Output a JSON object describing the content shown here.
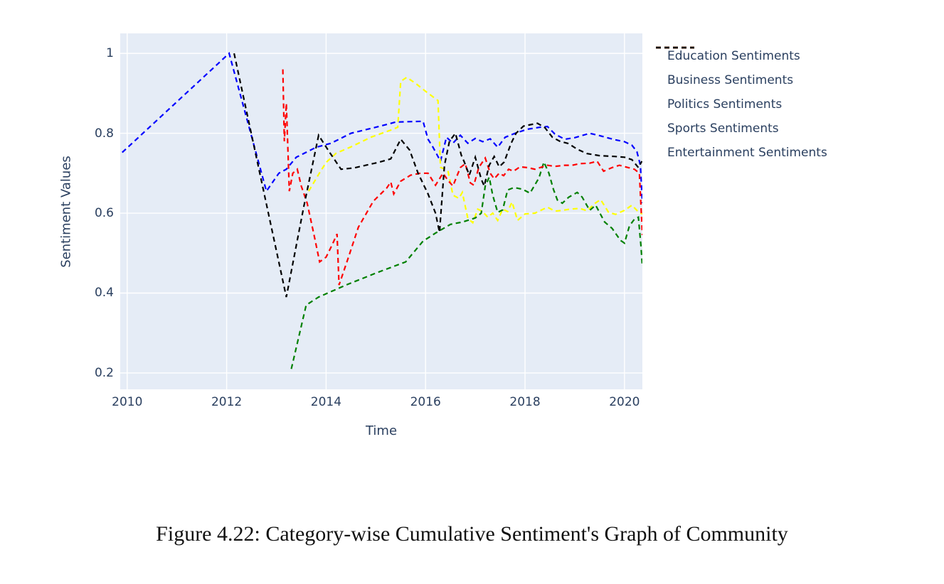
{
  "figure": {
    "caption": "Figure 4.22: Category-wise Cumulative Sentiment's Graph of Community"
  },
  "chart_data": {
    "type": "line",
    "title": "",
    "xlabel": "Time",
    "ylabel": "Sentiment Values",
    "xlim": [
      2009.86,
      2020.36
    ],
    "ylim": [
      0.159,
      1.05
    ],
    "grid": true,
    "legend_position": "right",
    "line_style": "dashed",
    "colors": {
      "plot_background": "#E5ECF6",
      "gridline": "#FFFFFF",
      "axis_text": "#2A3F5F",
      "caption_text": "#111111"
    },
    "x_tick_values": [
      2010,
      2012,
      2014,
      2016,
      2018,
      2020
    ],
    "x_tick_labels": [
      "2010",
      "2012",
      "2014",
      "2016",
      "2018",
      "2020"
    ],
    "y_tick_values": [
      0.2,
      0.4,
      0.6,
      0.8,
      1.0
    ],
    "y_tick_labels": [
      "0.2",
      "0.4",
      "0.6",
      "0.8",
      "1"
    ],
    "series": [
      {
        "name": "Education Sentiments",
        "color": "#0000FF",
        "dash": "dash",
        "points": [
          [
            2009.9,
            0.752
          ],
          [
            2012.05,
            1.0
          ],
          [
            2012.8,
            0.655
          ],
          [
            2013.05,
            0.7
          ],
          [
            2013.2,
            0.71
          ],
          [
            2013.4,
            0.74
          ],
          [
            2013.8,
            0.765
          ],
          [
            2014.1,
            0.775
          ],
          [
            2014.5,
            0.8
          ],
          [
            2015.0,
            0.815
          ],
          [
            2015.4,
            0.828
          ],
          [
            2015.95,
            0.83
          ],
          [
            2016.05,
            0.785
          ],
          [
            2016.15,
            0.765
          ],
          [
            2016.3,
            0.73
          ],
          [
            2016.42,
            0.79
          ],
          [
            2016.55,
            0.775
          ],
          [
            2016.7,
            0.795
          ],
          [
            2016.85,
            0.775
          ],
          [
            2017.0,
            0.787
          ],
          [
            2017.15,
            0.779
          ],
          [
            2017.3,
            0.786
          ],
          [
            2017.45,
            0.765
          ],
          [
            2017.6,
            0.79
          ],
          [
            2017.8,
            0.8
          ],
          [
            2018.05,
            0.81
          ],
          [
            2018.3,
            0.815
          ],
          [
            2018.45,
            0.817
          ],
          [
            2018.6,
            0.798
          ],
          [
            2018.8,
            0.785
          ],
          [
            2019.0,
            0.789
          ],
          [
            2019.3,
            0.8
          ],
          [
            2019.5,
            0.794
          ],
          [
            2019.8,
            0.784
          ],
          [
            2020.0,
            0.779
          ],
          [
            2020.15,
            0.77
          ],
          [
            2020.25,
            0.754
          ],
          [
            2020.32,
            0.72
          ],
          [
            2020.36,
            0.625
          ]
        ]
      },
      {
        "name": "Business Sentiments",
        "color": "#FFFF00",
        "dash": "dash",
        "points": [
          [
            2013.65,
            0.655
          ],
          [
            2013.85,
            0.697
          ],
          [
            2014.0,
            0.727
          ],
          [
            2014.2,
            0.75
          ],
          [
            2014.5,
            0.766
          ],
          [
            2014.9,
            0.79
          ],
          [
            2015.3,
            0.808
          ],
          [
            2015.44,
            0.815
          ],
          [
            2015.5,
            0.93
          ],
          [
            2015.62,
            0.94
          ],
          [
            2015.8,
            0.925
          ],
          [
            2016.0,
            0.905
          ],
          [
            2016.25,
            0.882
          ],
          [
            2016.3,
            0.715
          ],
          [
            2016.45,
            0.706
          ],
          [
            2016.55,
            0.645
          ],
          [
            2016.67,
            0.637
          ],
          [
            2016.74,
            0.652
          ],
          [
            2016.85,
            0.587
          ],
          [
            2016.95,
            0.576
          ],
          [
            2017.05,
            0.61
          ],
          [
            2017.15,
            0.604
          ],
          [
            2017.25,
            0.59
          ],
          [
            2017.35,
            0.6
          ],
          [
            2017.45,
            0.582
          ],
          [
            2017.55,
            0.61
          ],
          [
            2017.65,
            0.604
          ],
          [
            2017.74,
            0.628
          ],
          [
            2017.85,
            0.582
          ],
          [
            2018.0,
            0.598
          ],
          [
            2018.2,
            0.6
          ],
          [
            2018.45,
            0.615
          ],
          [
            2018.6,
            0.605
          ],
          [
            2018.75,
            0.607
          ],
          [
            2018.9,
            0.61
          ],
          [
            2019.1,
            0.612
          ],
          [
            2019.25,
            0.606
          ],
          [
            2019.4,
            0.624
          ],
          [
            2019.52,
            0.634
          ],
          [
            2019.68,
            0.602
          ],
          [
            2019.82,
            0.597
          ],
          [
            2020.0,
            0.607
          ],
          [
            2020.15,
            0.62
          ],
          [
            2020.28,
            0.603
          ],
          [
            2020.36,
            0.598
          ]
        ]
      },
      {
        "name": "Politics Sentiments",
        "color": "#008000",
        "dash": "dash",
        "points": [
          [
            2013.3,
            0.21
          ],
          [
            2013.6,
            0.37
          ],
          [
            2013.85,
            0.39
          ],
          [
            2014.4,
            0.42
          ],
          [
            2015.0,
            0.45
          ],
          [
            2015.6,
            0.478
          ],
          [
            2015.95,
            0.53
          ],
          [
            2016.2,
            0.55
          ],
          [
            2016.5,
            0.572
          ],
          [
            2016.75,
            0.578
          ],
          [
            2017.0,
            0.588
          ],
          [
            2017.12,
            0.6
          ],
          [
            2017.2,
            0.668
          ],
          [
            2017.28,
            0.69
          ],
          [
            2017.35,
            0.645
          ],
          [
            2017.45,
            0.602
          ],
          [
            2017.55,
            0.608
          ],
          [
            2017.65,
            0.658
          ],
          [
            2017.78,
            0.664
          ],
          [
            2017.95,
            0.66
          ],
          [
            2018.1,
            0.65
          ],
          [
            2018.28,
            0.688
          ],
          [
            2018.38,
            0.728
          ],
          [
            2018.48,
            0.7
          ],
          [
            2018.57,
            0.66
          ],
          [
            2018.65,
            0.633
          ],
          [
            2018.75,
            0.625
          ],
          [
            2018.88,
            0.64
          ],
          [
            2019.05,
            0.652
          ],
          [
            2019.15,
            0.64
          ],
          [
            2019.3,
            0.607
          ],
          [
            2019.42,
            0.62
          ],
          [
            2019.6,
            0.578
          ],
          [
            2019.75,
            0.562
          ],
          [
            2019.92,
            0.532
          ],
          [
            2020.0,
            0.525
          ],
          [
            2020.1,
            0.568
          ],
          [
            2020.2,
            0.585
          ],
          [
            2020.28,
            0.59
          ],
          [
            2020.33,
            0.52
          ],
          [
            2020.36,
            0.467
          ]
        ]
      },
      {
        "name": "Sports Sentiments",
        "color": "#FF0000",
        "dash": "dash",
        "points": [
          [
            2013.13,
            0.96
          ],
          [
            2013.16,
            0.78
          ],
          [
            2013.2,
            0.875
          ],
          [
            2013.26,
            0.655
          ],
          [
            2013.33,
            0.7
          ],
          [
            2013.42,
            0.71
          ],
          [
            2013.5,
            0.668
          ],
          [
            2013.62,
            0.625
          ],
          [
            2013.75,
            0.55
          ],
          [
            2013.87,
            0.478
          ],
          [
            2014.0,
            0.49
          ],
          [
            2014.12,
            0.52
          ],
          [
            2014.22,
            0.548
          ],
          [
            2014.26,
            0.42
          ],
          [
            2014.45,
            0.49
          ],
          [
            2014.65,
            0.565
          ],
          [
            2014.95,
            0.63
          ],
          [
            2015.22,
            0.663
          ],
          [
            2015.3,
            0.678
          ],
          [
            2015.36,
            0.648
          ],
          [
            2015.5,
            0.68
          ],
          [
            2015.7,
            0.695
          ],
          [
            2015.9,
            0.7
          ],
          [
            2016.05,
            0.7
          ],
          [
            2016.2,
            0.67
          ],
          [
            2016.35,
            0.7
          ],
          [
            2016.45,
            0.682
          ],
          [
            2016.55,
            0.668
          ],
          [
            2016.7,
            0.714
          ],
          [
            2016.8,
            0.724
          ],
          [
            2016.9,
            0.676
          ],
          [
            2016.97,
            0.67
          ],
          [
            2017.07,
            0.714
          ],
          [
            2017.2,
            0.738
          ],
          [
            2017.3,
            0.7
          ],
          [
            2017.38,
            0.686
          ],
          [
            2017.48,
            0.7
          ],
          [
            2017.57,
            0.694
          ],
          [
            2017.67,
            0.71
          ],
          [
            2017.77,
            0.705
          ],
          [
            2017.9,
            0.716
          ],
          [
            2018.05,
            0.714
          ],
          [
            2018.2,
            0.71
          ],
          [
            2018.45,
            0.72
          ],
          [
            2018.6,
            0.717
          ],
          [
            2018.8,
            0.72
          ],
          [
            2018.95,
            0.72
          ],
          [
            2019.1,
            0.724
          ],
          [
            2019.3,
            0.725
          ],
          [
            2019.45,
            0.73
          ],
          [
            2019.58,
            0.705
          ],
          [
            2019.75,
            0.714
          ],
          [
            2019.9,
            0.72
          ],
          [
            2020.05,
            0.715
          ],
          [
            2020.2,
            0.71
          ],
          [
            2020.3,
            0.7
          ],
          [
            2020.36,
            0.545
          ]
        ]
      },
      {
        "name": "Entertainment Sentiments",
        "color": "#000000",
        "dash": "dash",
        "points": [
          [
            2012.15,
            1.0
          ],
          [
            2013.2,
            0.39
          ],
          [
            2013.55,
            0.615
          ],
          [
            2013.85,
            0.795
          ],
          [
            2014.05,
            0.756
          ],
          [
            2014.3,
            0.71
          ],
          [
            2014.55,
            0.713
          ],
          [
            2014.8,
            0.72
          ],
          [
            2015.05,
            0.727
          ],
          [
            2015.3,
            0.736
          ],
          [
            2015.5,
            0.785
          ],
          [
            2015.68,
            0.758
          ],
          [
            2015.85,
            0.7
          ],
          [
            2016.05,
            0.648
          ],
          [
            2016.2,
            0.6
          ],
          [
            2016.28,
            0.552
          ],
          [
            2016.38,
            0.72
          ],
          [
            2016.48,
            0.78
          ],
          [
            2016.6,
            0.8
          ],
          [
            2016.72,
            0.745
          ],
          [
            2016.78,
            0.728
          ],
          [
            2016.88,
            0.695
          ],
          [
            2017.0,
            0.74
          ],
          [
            2017.12,
            0.685
          ],
          [
            2017.18,
            0.668
          ],
          [
            2017.28,
            0.72
          ],
          [
            2017.38,
            0.742
          ],
          [
            2017.48,
            0.716
          ],
          [
            2017.58,
            0.728
          ],
          [
            2017.72,
            0.775
          ],
          [
            2017.82,
            0.8
          ],
          [
            2017.97,
            0.818
          ],
          [
            2018.25,
            0.825
          ],
          [
            2018.4,
            0.814
          ],
          [
            2018.55,
            0.79
          ],
          [
            2018.7,
            0.78
          ],
          [
            2018.88,
            0.774
          ],
          [
            2019.05,
            0.76
          ],
          [
            2019.25,
            0.749
          ],
          [
            2019.5,
            0.744
          ],
          [
            2019.8,
            0.742
          ],
          [
            2020.0,
            0.74
          ],
          [
            2020.15,
            0.734
          ],
          [
            2020.28,
            0.714
          ],
          [
            2020.35,
            0.73
          ]
        ]
      }
    ]
  }
}
